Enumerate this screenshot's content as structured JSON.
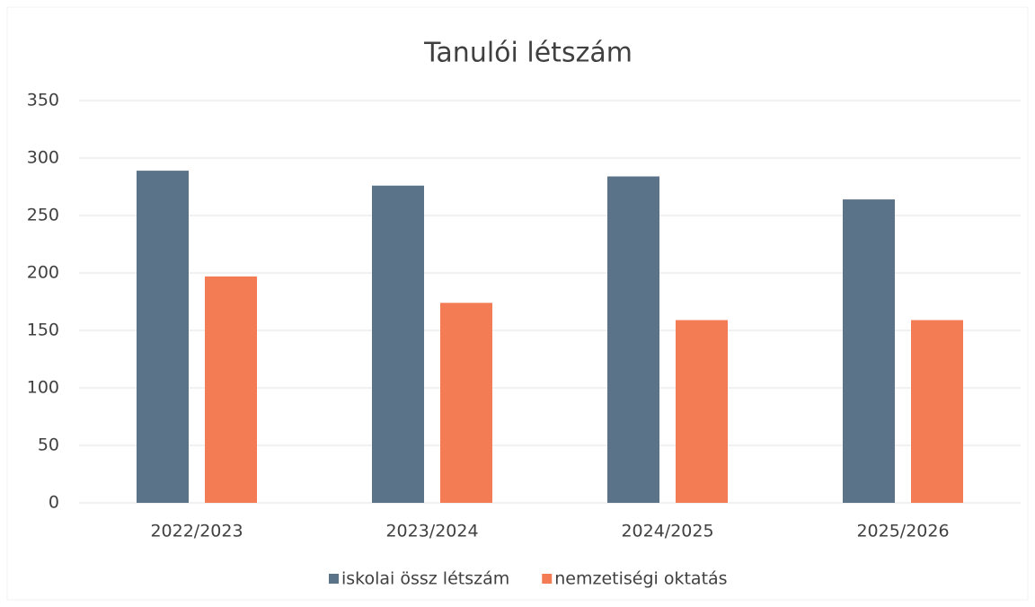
{
  "chart_data": {
    "type": "bar",
    "title": "Tanulói létszám",
    "categories": [
      "2022/2023",
      "2023/2024",
      "2024/2025",
      "2025/2026"
    ],
    "series": [
      {
        "name": "iskolai össz létszám",
        "color": "#5b7388",
        "values": [
          289,
          276,
          284,
          264
        ]
      },
      {
        "name": "nemzetiségi oktatás",
        "color": "#f47c55",
        "values": [
          197,
          174,
          159,
          159
        ]
      }
    ],
    "ylim": [
      0,
      350
    ],
    "yticks": [
      0,
      50,
      100,
      150,
      200,
      250,
      300,
      350
    ],
    "grid": true
  }
}
